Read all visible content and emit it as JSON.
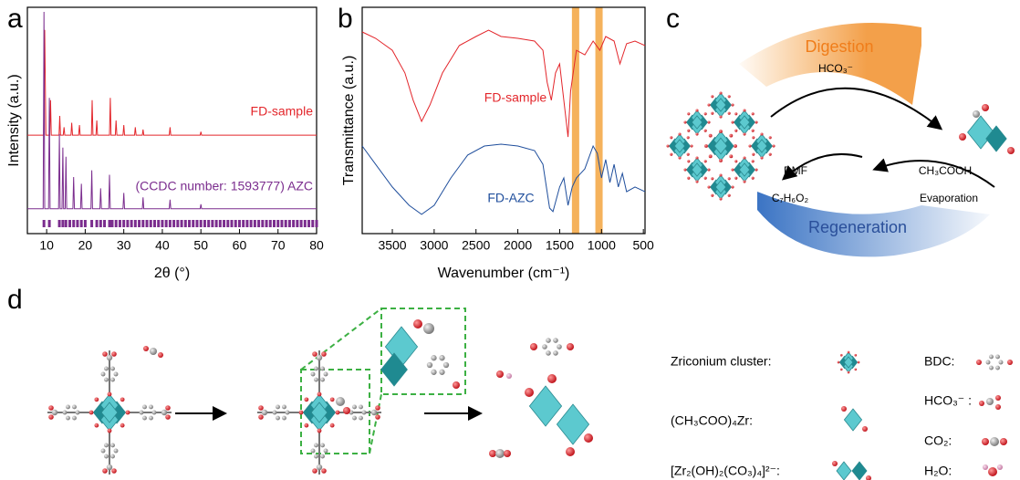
{
  "labels": [
    "a",
    "b",
    "c",
    "d"
  ],
  "chart_data": [
    {
      "type": "line",
      "xlabel": "2θ (°)",
      "ylabel": "Intensity (a.u.)",
      "xlim": [
        5,
        80
      ],
      "xticks": [
        10,
        20,
        30,
        40,
        50,
        60,
        70,
        80
      ],
      "ylim": [
        0,
        100
      ],
      "series": [
        {
          "name": "FD-sample",
          "color": "#e3262b",
          "x": [
            5,
            9.2,
            9.5,
            9.8,
            10.8,
            11,
            11.2,
            13.2,
            13.4,
            13.6,
            14.3,
            14.5,
            14.7,
            16.3,
            16.5,
            16.7,
            18.3,
            18.5,
            18.7,
            21.6,
            21.8,
            22,
            22.8,
            23,
            23.2,
            26.3,
            26.5,
            26.7,
            27.8,
            28,
            28.2,
            29.8,
            30,
            30.2,
            32.8,
            33,
            33.2,
            34.8,
            35,
            35.2,
            41.8,
            42,
            42.2,
            49.8,
            50,
            50.2,
            80
          ],
          "values": [
            43.5,
            43.5,
            90,
            43.5,
            43.5,
            59,
            43.5,
            43.5,
            52,
            43.5,
            43.5,
            47,
            43.5,
            43.5,
            49,
            43.5,
            43.5,
            48,
            43.5,
            43.5,
            59,
            43.5,
            43.5,
            50,
            43.5,
            43.5,
            60,
            43.5,
            43.5,
            50,
            43.5,
            43.5,
            48,
            43.5,
            43.5,
            47,
            43.5,
            43.5,
            46,
            43.5,
            43.5,
            47,
            43.5,
            43.5,
            45,
            43.5,
            43.5
          ]
        },
        {
          "name": "(CCDC number: 1593777) AZC",
          "color": "#7b2d8e",
          "x": [
            5,
            9.1,
            9.3,
            9.5,
            10.5,
            10.7,
            10.9,
            13.1,
            13.3,
            13.5,
            14.0,
            14.2,
            14.4,
            14.8,
            15,
            15.2,
            16.8,
            17,
            17.2,
            18.8,
            19,
            19.2,
            21.5,
            21.7,
            21.9,
            23.8,
            24,
            24.2,
            26.1,
            26.3,
            26.5,
            29.8,
            30,
            30.2,
            34.8,
            35,
            35.2,
            41.8,
            42,
            42.2,
            49.8,
            50,
            50.2,
            80
          ],
          "values": [
            11,
            11,
            98,
            11,
            11,
            60,
            11,
            11,
            44,
            11,
            11,
            38,
            11,
            11,
            34,
            11,
            11,
            25,
            11,
            11,
            22,
            11,
            11,
            28,
            11,
            11,
            20,
            11,
            11,
            26,
            11,
            11,
            18,
            11,
            11,
            16,
            11,
            11,
            15,
            11,
            11,
            13,
            11,
            11
          ]
        }
      ],
      "reflections": {
        "color": "#7b2d8e",
        "x": [
          9.3,
          10.7,
          13.3,
          14.2,
          15,
          16,
          17,
          18,
          19,
          20,
          21.7,
          23,
          24,
          25,
          26.3,
          27,
          28,
          29,
          30,
          31,
          32,
          33,
          34,
          35,
          36,
          37,
          38,
          39,
          40,
          41,
          42,
          43,
          44,
          45,
          46,
          47,
          48,
          49,
          50,
          51,
          52,
          53,
          54,
          55,
          56,
          57,
          58,
          59,
          60,
          61,
          62,
          63,
          64,
          65,
          66,
          67,
          68,
          69,
          70,
          71,
          72,
          73,
          74,
          75,
          76,
          77,
          78,
          79,
          80
        ]
      }
    },
    {
      "type": "line",
      "xlabel": "Wavenumber (cm⁻¹)",
      "ylabel": "Transmittance (a.u.)",
      "xlim": [
        3860,
        480
      ],
      "xticks": [
        3500,
        3000,
        2500,
        2000,
        1500,
        1000,
        500
      ],
      "ylim": [
        0,
        100
      ],
      "series": [
        {
          "name": "FD-sample",
          "color": "#e3262b",
          "x": [
            3860,
            3700,
            3500,
            3350,
            3250,
            3150,
            3050,
            2900,
            2700,
            2500,
            2350,
            2200,
            2000,
            1800,
            1700,
            1650,
            1600,
            1550,
            1500,
            1450,
            1400,
            1370,
            1300,
            1200,
            1100,
            1020,
            950,
            850,
            780,
            700,
            600,
            480
          ],
          "values": [
            89.1,
            86.3,
            81,
            71,
            58.9,
            49.6,
            56.9,
            71,
            83.1,
            87.1,
            89.9,
            87.1,
            86.3,
            85.1,
            81,
            66.9,
            58.9,
            71,
            75,
            58.9,
            42.7,
            62.9,
            81,
            79,
            85.1,
            81,
            87.1,
            85.1,
            75,
            83.9,
            85.1,
            83.1
          ]
        },
        {
          "name": "FD-AZC",
          "color": "#1f4e9c",
          "x": [
            3860,
            3700,
            3500,
            3300,
            3150,
            3000,
            2800,
            2600,
            2400,
            2200,
            2000,
            1800,
            1700,
            1620,
            1580,
            1500,
            1450,
            1400,
            1350,
            1300,
            1200,
            1100,
            1050,
            1000,
            950,
            900,
            850,
            800,
            750,
            700,
            600,
            480
          ],
          "values": [
            38.7,
            30.6,
            20.6,
            12.5,
            8.5,
            12.5,
            24.6,
            34.7,
            38.7,
            39.5,
            38.7,
            36.7,
            30.6,
            11.3,
            9.7,
            20.6,
            24.6,
            12.5,
            20.6,
            24.6,
            28.6,
            38.7,
            35.5,
            24.6,
            32.7,
            22.6,
            30.6,
            20.6,
            26.6,
            18.5,
            20.6,
            18.5
          ]
        }
      ],
      "highlights": {
        "color": "#f3a540",
        "x": [
          1310,
          1030
        ]
      }
    }
  ],
  "cycle": {
    "top": "Digestion",
    "top_reagent": "HCO₃⁻",
    "left_top": "DMF",
    "left_bottom": "C₇H₆O₂",
    "right_top": "CH₃COOH",
    "right_bottom": "Evaporation",
    "bottom": "Regeneration"
  },
  "legend": [
    "Zriconium cluster:",
    "BDC:",
    "HCO₃⁻ :",
    "(CH₃COO)₄Zr:",
    "CO₂:",
    "[Zr₂(OH)₂(CO₃)₄]²⁻:",
    "H₂O:"
  ]
}
